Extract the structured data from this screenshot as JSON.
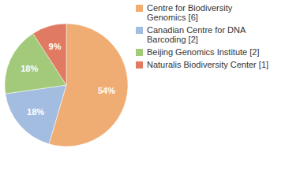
{
  "chart_data": {
    "type": "pie",
    "categories": [
      "Centre for Biodiversity Genomics [6]",
      "Canadian Centre for DNA Barcoding [2]",
      "Beijing Genomics Institute [2]",
      "Naturalis Biodiversity Center [1]"
    ],
    "values": [
      54,
      18,
      18,
      9
    ],
    "value_labels": [
      "54%",
      "18%",
      "18%",
      "9%"
    ],
    "colors": [
      "#f0ad73",
      "#a3bde0",
      "#a3c97a",
      "#e07a62"
    ],
    "data_labels": true,
    "legend": "top-right"
  }
}
